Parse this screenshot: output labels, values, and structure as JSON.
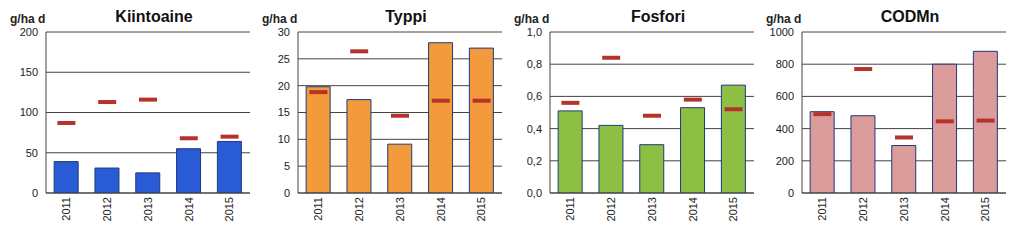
{
  "chart_data": [
    {
      "type": "bar",
      "title": "Kiintoaine",
      "y_label": "g/ha d",
      "categories": [
        "2011",
        "2012",
        "2013",
        "2014",
        "2015"
      ],
      "series": [
        {
          "type": "bar",
          "color": "#2a5bd7",
          "values": [
            39,
            31,
            25,
            55,
            64
          ]
        },
        {
          "type": "scatter",
          "marker": "dash",
          "color": "#b5332a",
          "values": [
            87,
            113,
            116,
            68,
            70
          ]
        }
      ],
      "ylim": [
        0,
        200
      ],
      "yticks": [
        0,
        50,
        100,
        150,
        200
      ],
      "grid": true
    },
    {
      "type": "bar",
      "title": "Typpi",
      "y_label": "g/ha d",
      "categories": [
        "2011",
        "2012",
        "2013",
        "2014",
        "2015"
      ],
      "series": [
        {
          "type": "bar",
          "color": "#f39a3c",
          "values": [
            19.8,
            17.4,
            9.1,
            28,
            27
          ]
        },
        {
          "type": "scatter",
          "marker": "dash",
          "color": "#b5332a",
          "values": [
            18.8,
            26.4,
            14.4,
            17.2,
            17.2
          ]
        }
      ],
      "ylim": [
        0,
        30
      ],
      "yticks": [
        0,
        5,
        10,
        15,
        20,
        25,
        30
      ],
      "grid": true
    },
    {
      "type": "bar",
      "title": "Fosfori",
      "y_label": "g/ha d",
      "categories": [
        "2011",
        "2012",
        "2013",
        "2014",
        "2015"
      ],
      "series": [
        {
          "type": "bar",
          "color": "#8dbf45",
          "values": [
            0.51,
            0.42,
            0.3,
            0.53,
            0.67
          ]
        },
        {
          "type": "scatter",
          "marker": "dash",
          "color": "#b5332a",
          "values": [
            0.56,
            0.84,
            0.48,
            0.58,
            0.52
          ]
        }
      ],
      "ylim": [
        0,
        1.0
      ],
      "yticks": [
        {
          "value": 0,
          "label": "0,0"
        },
        {
          "value": 0.2,
          "label": "0,2"
        },
        {
          "value": 0.4,
          "label": "0,4"
        },
        {
          "value": 0.6,
          "label": "0,6"
        },
        {
          "value": 0.8,
          "label": "0,8"
        },
        {
          "value": 1.0,
          "label": "1,0"
        }
      ],
      "grid": true
    },
    {
      "type": "bar",
      "title": "CODMn",
      "y_label": "g/ha d",
      "categories": [
        "2011",
        "2012",
        "2013",
        "2014",
        "2015"
      ],
      "series": [
        {
          "type": "bar",
          "color": "#dc9c9c",
          "values": [
            505,
            480,
            295,
            800,
            880
          ]
        },
        {
          "type": "scatter",
          "marker": "dash",
          "color": "#b5332a",
          "values": [
            490,
            770,
            345,
            445,
            450
          ]
        }
      ],
      "ylim": [
        0,
        1000
      ],
      "yticks": [
        0,
        200,
        400,
        600,
        800,
        1000
      ],
      "grid": true
    }
  ]
}
